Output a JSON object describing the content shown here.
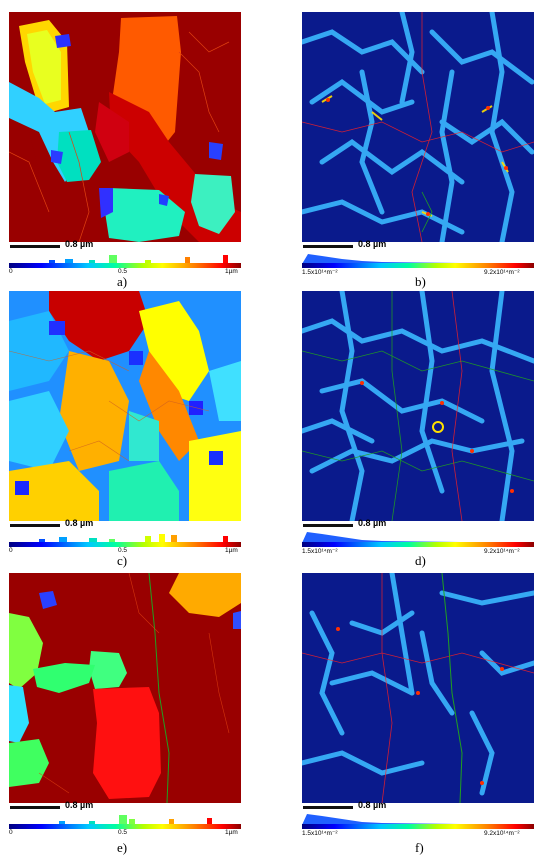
{
  "panels": [
    {
      "label": "a)",
      "scale_text": "0.8 µm",
      "tick_left": "0",
      "tick_mid": "0.5",
      "tick_right": "1µm"
    },
    {
      "label": "b)",
      "scale_text": "0.8 µm",
      "tick_left": "1.5x10¹⁴m⁻²",
      "tick_right": "9.2x10¹⁴m⁻²"
    },
    {
      "label": "c)",
      "scale_text": "0.8 µm",
      "tick_left": "0",
      "tick_mid": "0.5",
      "tick_right": "1µm"
    },
    {
      "label": "d)",
      "scale_text": "0.8 µm",
      "tick_left": "1.5x10¹⁴m⁻²",
      "tick_right": "9.2x10¹⁴m⁻²"
    },
    {
      "label": "e)",
      "scale_text": "0.8 µm",
      "tick_left": "0",
      "tick_mid": "0.5",
      "tick_right": "1µm"
    },
    {
      "label": "f)",
      "scale_text": "0.8 µm",
      "tick_left": "1.5x10¹⁴m⁻²",
      "tick_right": "9.2x10¹⁴m⁻²"
    }
  ],
  "colors": {
    "grain_dark_red": "#990000",
    "density_background": "#0a1a8c",
    "boundary_red": "#ff2020",
    "boundary_green": "#20a020"
  }
}
